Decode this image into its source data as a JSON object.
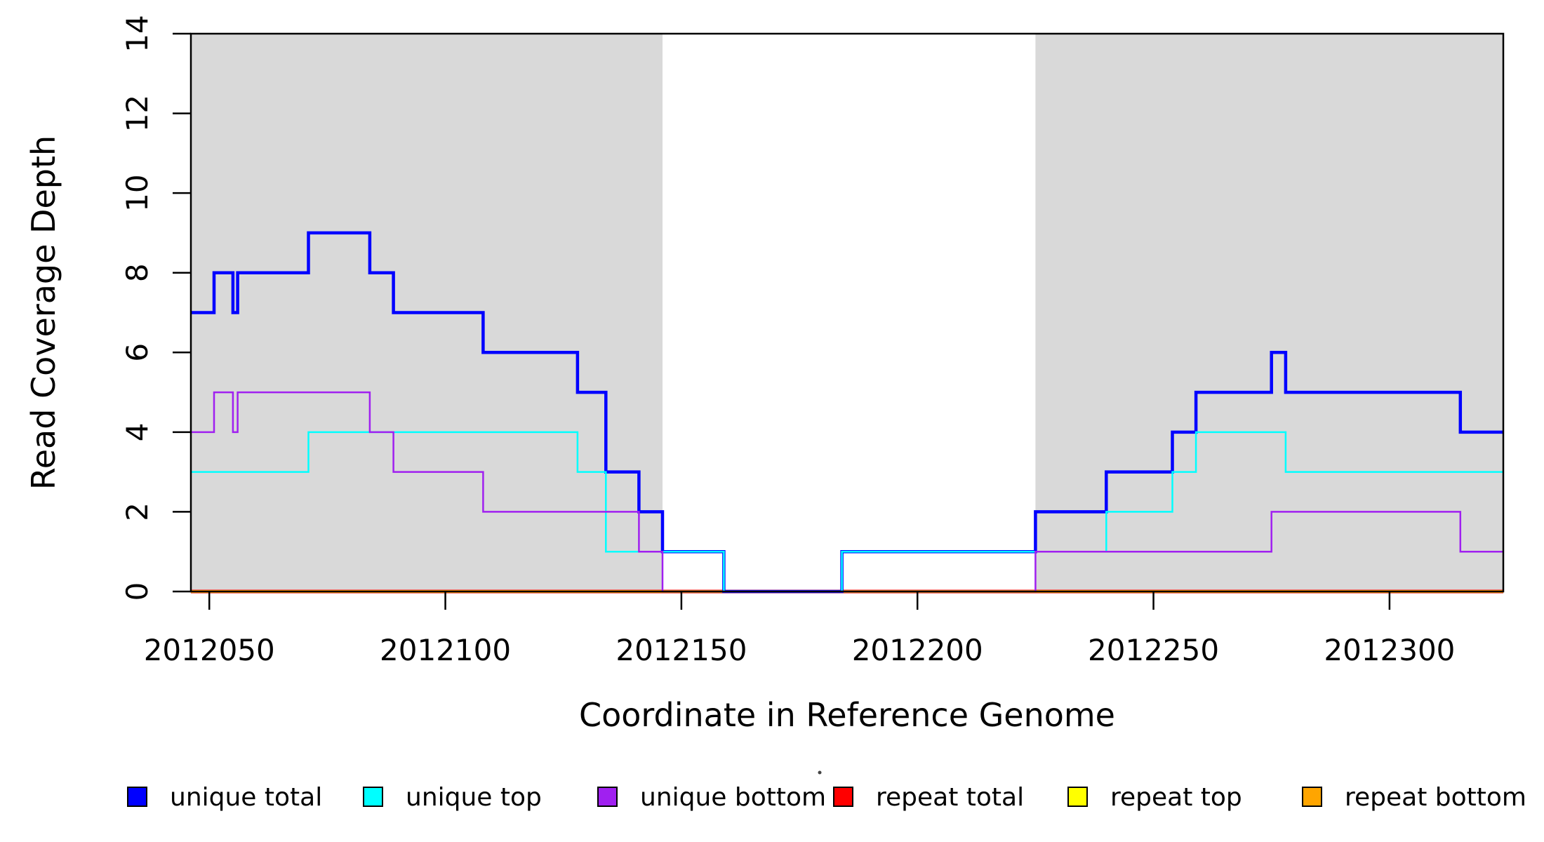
{
  "figure": {
    "kind": "R step plot of read coverage",
    "background": "#ffffff"
  },
  "chart_data": {
    "type": "line",
    "step": true,
    "title": "",
    "xlabel": "Coordinate in Reference Genome",
    "ylabel": "Read Coverage Depth",
    "xlim": [
      2012046.1,
      2012324.1
    ],
    "ylim": [
      0,
      14
    ],
    "x_ticks": [
      2012050,
      2012100,
      2012150,
      2012200,
      2012250,
      2012300
    ],
    "y_ticks": [
      0,
      2,
      4,
      6,
      8,
      10,
      12,
      14
    ],
    "grid": false,
    "legend_position": "bottom",
    "shade_color": "#D9D9D9",
    "shaded_regions": [
      {
        "from": 2012046.1,
        "to": 2012146
      },
      {
        "from": 2012225,
        "to": 2012324.1
      }
    ],
    "draw_order": [
      "repeat total",
      "repeat top",
      "repeat bottom",
      "unique total",
      "unique top",
      "unique bottom"
    ],
    "series": [
      {
        "name": "unique total",
        "color": "#0000FF",
        "linewidth": 4.5,
        "steps": [
          [
            2012046.1,
            7
          ],
          [
            2012051,
            8
          ],
          [
            2012055,
            7
          ],
          [
            2012056,
            8
          ],
          [
            2012071,
            9
          ],
          [
            2012084,
            8
          ],
          [
            2012089,
            7
          ],
          [
            2012108,
            6
          ],
          [
            2012128,
            5
          ],
          [
            2012134,
            3
          ],
          [
            2012141,
            2
          ],
          [
            2012146,
            1
          ],
          [
            2012159,
            0
          ],
          [
            2012184,
            1
          ],
          [
            2012225,
            2
          ],
          [
            2012240,
            3
          ],
          [
            2012254,
            4
          ],
          [
            2012259,
            5
          ],
          [
            2012275,
            6
          ],
          [
            2012278,
            5
          ],
          [
            2012315,
            4
          ]
        ]
      },
      {
        "name": "unique top",
        "color": "#00FFFF",
        "linewidth": 2.5,
        "steps": [
          [
            2012046.1,
            3
          ],
          [
            2012071,
            4
          ],
          [
            2012128,
            3
          ],
          [
            2012134,
            1
          ],
          [
            2012159,
            0
          ],
          [
            2012184,
            1
          ],
          [
            2012240,
            2
          ],
          [
            2012254,
            3
          ],
          [
            2012259,
            4
          ],
          [
            2012278,
            3
          ]
        ]
      },
      {
        "name": "unique bottom",
        "color": "#A020F0",
        "linewidth": 2.5,
        "steps": [
          [
            2012046.1,
            4
          ],
          [
            2012051,
            5
          ],
          [
            2012055,
            4
          ],
          [
            2012056,
            5
          ],
          [
            2012084,
            4
          ],
          [
            2012089,
            3
          ],
          [
            2012108,
            2
          ],
          [
            2012141,
            1
          ],
          [
            2012146,
            0
          ],
          [
            2012225,
            1
          ],
          [
            2012275,
            2
          ],
          [
            2012315,
            1
          ]
        ]
      },
      {
        "name": "repeat total",
        "color": "#FF0000",
        "linewidth": 5,
        "steps": [
          [
            2012046.1,
            0
          ]
        ]
      },
      {
        "name": "repeat top",
        "color": "#FFFF00",
        "linewidth": 3.5,
        "steps": [
          [
            2012046.1,
            0
          ]
        ]
      },
      {
        "name": "repeat bottom",
        "color": "#FFA500",
        "linewidth": 3.5,
        "steps": [
          [
            2012046.1,
            0
          ]
        ]
      }
    ]
  }
}
